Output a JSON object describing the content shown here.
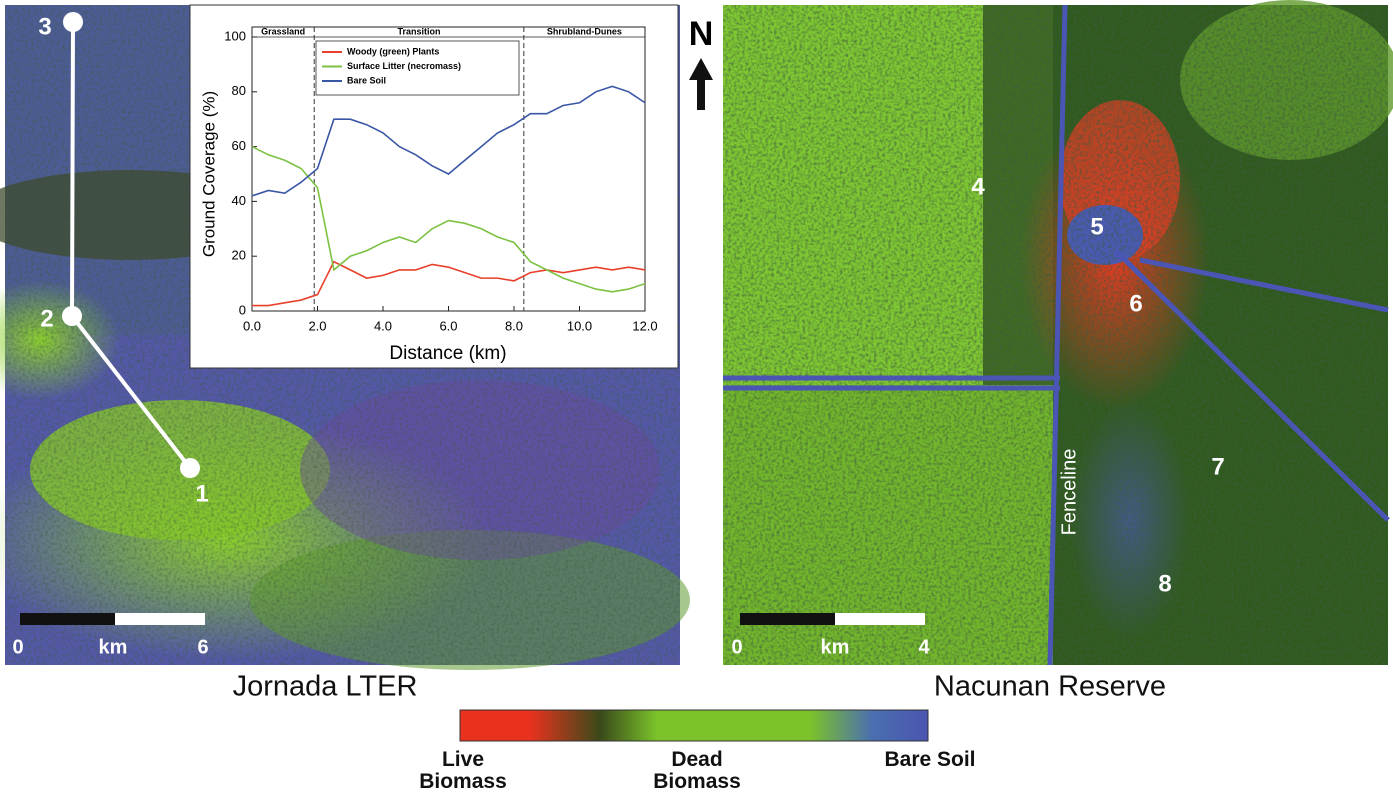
{
  "chart_data": {
    "type": "line",
    "xlabel": "Distance (km)",
    "ylabel": "Ground Coverage (%)",
    "zones": [
      {
        "label": "Grassland",
        "from": 0,
        "to": 1.9
      },
      {
        "label": "Transition",
        "from": 1.9,
        "to": 8.3
      },
      {
        "label": "Shrubland-Dunes",
        "from": 8.3,
        "to": 12
      }
    ],
    "x": [
      0,
      0.5,
      1,
      1.5,
      2,
      2.5,
      3,
      3.5,
      4,
      4.5,
      5,
      5.5,
      6,
      6.5,
      7,
      7.5,
      8,
      8.5,
      9,
      9.5,
      10,
      10.5,
      11,
      11.5,
      12
    ],
    "series": [
      {
        "name": "Woody (green) Plants",
        "color": "#e8402a",
        "values": [
          2,
          2,
          3,
          4,
          6,
          18,
          15,
          12,
          13,
          15,
          15,
          17,
          16,
          14,
          12,
          12,
          11,
          14,
          15,
          14,
          15,
          16,
          15,
          16,
          15
        ]
      },
      {
        "name": "Surface Litter (necromass)",
        "color": "#7cc242",
        "values": [
          60,
          57,
          55,
          52,
          45,
          15,
          20,
          22,
          25,
          27,
          25,
          30,
          33,
          32,
          30,
          27,
          25,
          18,
          15,
          12,
          10,
          8,
          7,
          8,
          10
        ]
      },
      {
        "name": "Bare Soil",
        "color": "#3a57a6",
        "values": [
          42,
          44,
          43,
          47,
          52,
          70,
          70,
          68,
          65,
          60,
          57,
          53,
          50,
          55,
          60,
          65,
          68,
          72,
          72,
          75,
          76,
          80,
          82,
          80,
          76
        ]
      }
    ],
    "xlim": [
      0,
      12
    ],
    "xticks": [
      {
        "value": 0,
        "label": "0.0"
      },
      {
        "value": 2,
        "label": "2.0"
      },
      {
        "value": 4,
        "label": "4.0"
      },
      {
        "value": 6,
        "label": "6.0"
      },
      {
        "value": 8,
        "label": "8.0"
      },
      {
        "value": 10,
        "label": "10.0"
      },
      {
        "value": 12,
        "label": "12.0"
      }
    ],
    "ylim": [
      0,
      100
    ],
    "yticks": [
      0,
      20,
      40,
      60,
      80,
      100
    ]
  },
  "maps": {
    "left": {
      "title": "Jornada LTER",
      "points": [
        "1",
        "2",
        "3"
      ],
      "scale": [
        "0",
        "km",
        "6"
      ]
    },
    "right": {
      "title": "Nacunan Reserve",
      "points": [
        "4",
        "5",
        "6",
        "7",
        "8"
      ],
      "fence": "Fenceline",
      "scale": [
        "0",
        "km",
        "4"
      ]
    },
    "north": "N"
  },
  "colorbar": {
    "labels": [
      "Live Biomass",
      "Dead Biomass",
      "Bare Soil"
    ]
  }
}
